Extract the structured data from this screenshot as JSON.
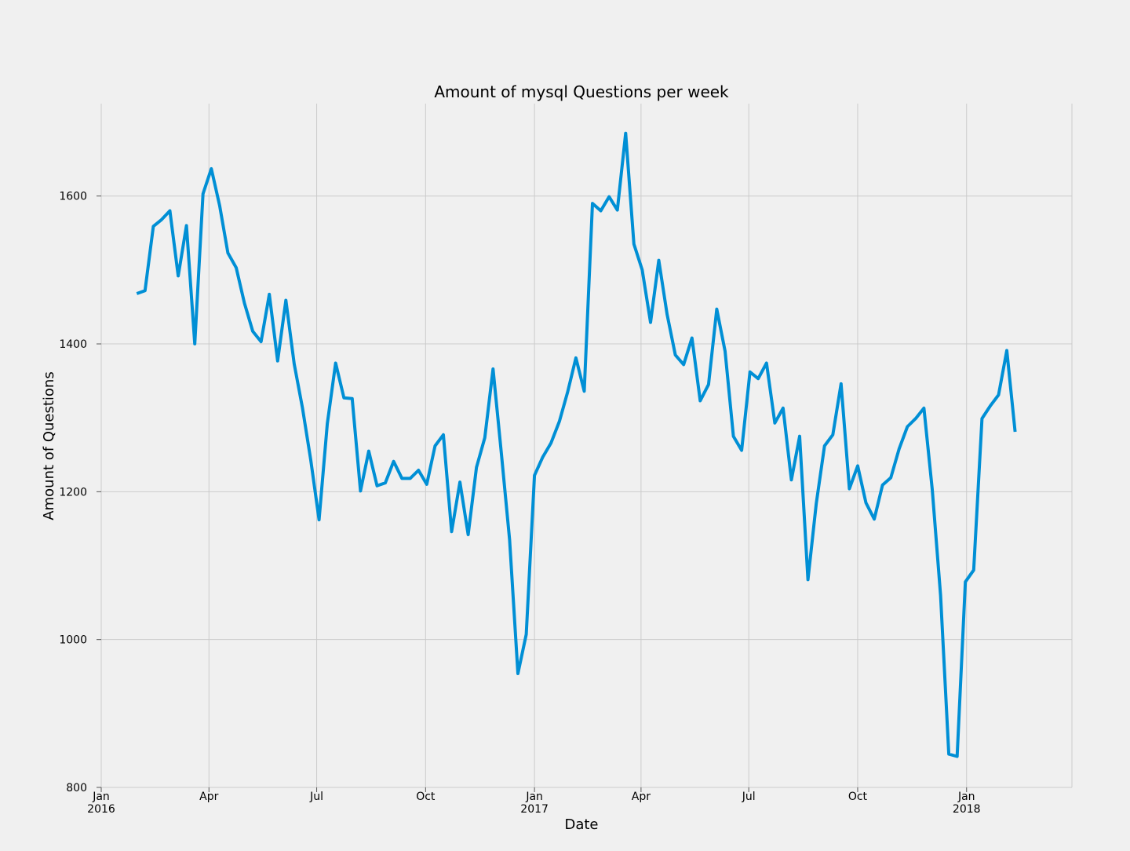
{
  "chart_data": {
    "type": "line",
    "title": "Amount of mysql Questions per week",
    "xlabel": "Date",
    "ylabel": "Amount of Questions",
    "x_range": [
      "2016-01-01",
      "2018-03-31"
    ],
    "ylim": [
      800,
      1725
    ],
    "y_ticks": [
      800,
      1000,
      1200,
      1400,
      1600
    ],
    "x_ticks": [
      {
        "date": "2016-01-01",
        "label": "Jan",
        "sublabel": "2016"
      },
      {
        "date": "2016-04-01",
        "label": "Apr",
        "sublabel": ""
      },
      {
        "date": "2016-07-01",
        "label": "Jul",
        "sublabel": ""
      },
      {
        "date": "2016-10-01",
        "label": "Oct",
        "sublabel": ""
      },
      {
        "date": "2017-01-01",
        "label": "Jan",
        "sublabel": "2017"
      },
      {
        "date": "2017-04-01",
        "label": "Apr",
        "sublabel": ""
      },
      {
        "date": "2017-07-01",
        "label": "Jul",
        "sublabel": ""
      },
      {
        "date": "2017-10-01",
        "label": "Oct",
        "sublabel": ""
      },
      {
        "date": "2018-01-01",
        "label": "Jan",
        "sublabel": "2018"
      }
    ],
    "grid": true,
    "color": "#008fd5",
    "series": [
      {
        "x": [
          "2016-01-31",
          "2016-02-07",
          "2016-02-14",
          "2016-02-21",
          "2016-02-28",
          "2016-03-06",
          "2016-03-13",
          "2016-03-20",
          "2016-03-27",
          "2016-04-03",
          "2016-04-10",
          "2016-04-17",
          "2016-04-24",
          "2016-05-01",
          "2016-05-08",
          "2016-05-15",
          "2016-05-22",
          "2016-05-29",
          "2016-06-05",
          "2016-06-12",
          "2016-06-19",
          "2016-06-26",
          "2016-07-03",
          "2016-07-10",
          "2016-07-17",
          "2016-07-24",
          "2016-07-31",
          "2016-08-07",
          "2016-08-14",
          "2016-08-21",
          "2016-08-28",
          "2016-09-04",
          "2016-09-11",
          "2016-09-18",
          "2016-09-25",
          "2016-10-02",
          "2016-10-09",
          "2016-10-16",
          "2016-10-23",
          "2016-10-30",
          "2016-11-06",
          "2016-11-13",
          "2016-11-20",
          "2016-11-27",
          "2016-12-04",
          "2016-12-11",
          "2016-12-18",
          "2016-12-25",
          "2017-01-01",
          "2017-01-08",
          "2017-01-15",
          "2017-01-22",
          "2017-01-29",
          "2017-02-05",
          "2017-02-12",
          "2017-02-19",
          "2017-02-26",
          "2017-03-05",
          "2017-03-12",
          "2017-03-19",
          "2017-03-26",
          "2017-04-02",
          "2017-04-09",
          "2017-04-16",
          "2017-04-23",
          "2017-04-30",
          "2017-05-07",
          "2017-05-14",
          "2017-05-21",
          "2017-05-28",
          "2017-06-04",
          "2017-06-11",
          "2017-06-18",
          "2017-06-25",
          "2017-07-02",
          "2017-07-09",
          "2017-07-16",
          "2017-07-23",
          "2017-07-30",
          "2017-08-06",
          "2017-08-13",
          "2017-08-20",
          "2017-08-27",
          "2017-09-03",
          "2017-09-10",
          "2017-09-17",
          "2017-09-24",
          "2017-10-01",
          "2017-10-08",
          "2017-10-15",
          "2017-10-22",
          "2017-10-29",
          "2017-11-05",
          "2017-11-12",
          "2017-11-19",
          "2017-11-26",
          "2017-12-03",
          "2017-12-10",
          "2017-12-17",
          "2017-12-24",
          "2017-12-31",
          "2018-01-07",
          "2018-01-14",
          "2018-01-21",
          "2018-01-28",
          "2018-02-04",
          "2018-02-11"
        ],
        "y": [
          1468,
          1472,
          1559,
          1568,
          1580,
          1492,
          1560,
          1400,
          1603,
          1637,
          1587,
          1523,
          1503,
          1455,
          1417,
          1403,
          1467,
          1377,
          1459,
          1373,
          1313,
          1243,
          1162,
          1292,
          1374,
          1327,
          1326,
          1201,
          1255,
          1208,
          1212,
          1241,
          1218,
          1218,
          1229,
          1210,
          1262,
          1277,
          1146,
          1213,
          1142,
          1233,
          1273,
          1366,
          1252,
          1135,
          954,
          1007,
          1222,
          1247,
          1266,
          1295,
          1335,
          1381,
          1336,
          1590,
          1580,
          1599,
          1581,
          1685,
          1535,
          1500,
          1429,
          1513,
          1440,
          1385,
          1372,
          1408,
          1323,
          1345,
          1447,
          1390,
          1275,
          1256,
          1362,
          1353,
          1374,
          1293,
          1313,
          1216,
          1275,
          1081,
          1184,
          1262,
          1277,
          1346,
          1204,
          1235,
          1185,
          1163,
          1209,
          1219,
          1258,
          1288,
          1299,
          1313,
          1203,
          1060,
          845,
          842,
          1078,
          1094,
          1299,
          1316,
          1331,
          1391,
          1281
        ]
      }
    ]
  }
}
